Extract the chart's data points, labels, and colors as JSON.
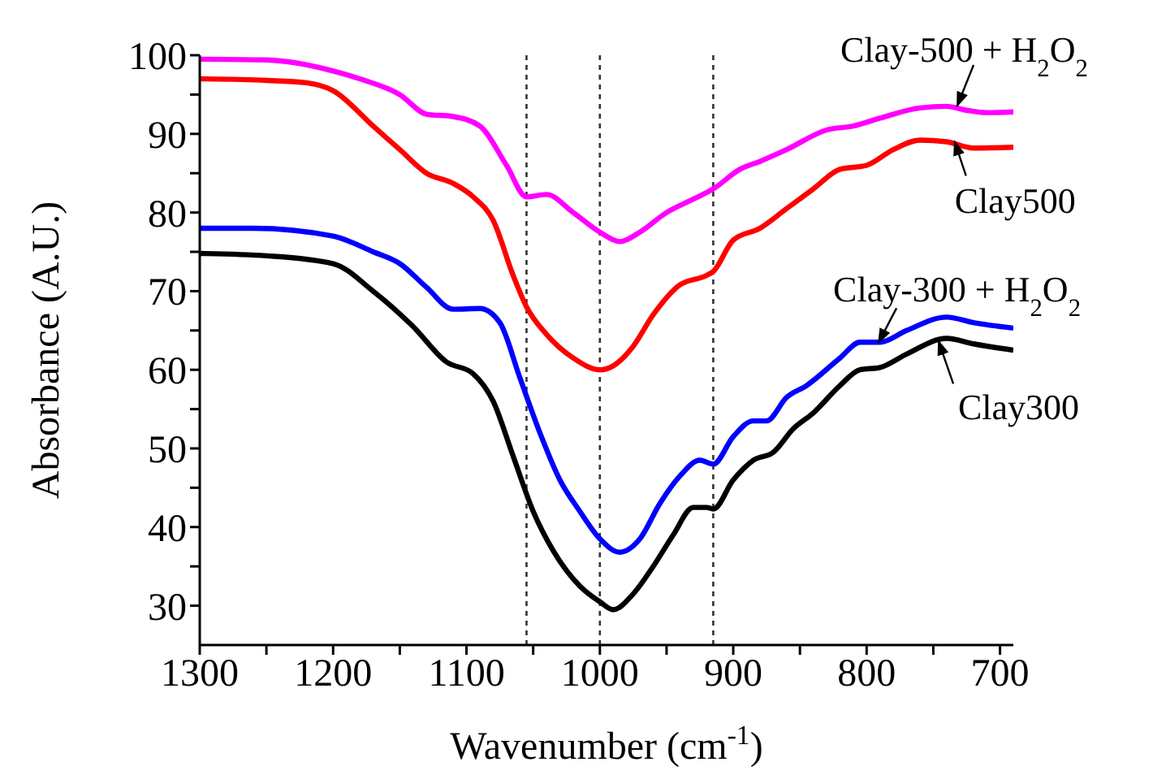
{
  "chart_data": {
    "type": "line",
    "xlabel": "Wavenumber (cm$^{-1}$)",
    "ylabel": "Absorbance (A.U.)",
    "xlim": [
      1300,
      690
    ],
    "ylim": [
      25,
      100
    ],
    "xticks": [
      1300,
      {
        "value": 1250,
        "label": null
      },
      1200,
      {
        "value": 1150,
        "label": null
      },
      1100,
      {
        "value": 1050,
        "label": null
      },
      1000,
      {
        "value": 950,
        "label": null
      },
      900,
      {
        "value": 850,
        "label": null
      },
      800,
      {
        "value": 750,
        "label": null
      },
      700
    ],
    "yticks": [
      30,
      {
        "value": 35,
        "label": null
      },
      40,
      {
        "value": 45,
        "label": null
      },
      50,
      {
        "value": 55,
        "label": null
      },
      60,
      {
        "value": 65,
        "label": null
      },
      70,
      {
        "value": 75,
        "label": null
      },
      80,
      {
        "value": 85,
        "label": null
      },
      90,
      {
        "value": 95,
        "label": null
      },
      100
    ],
    "marker": "none",
    "line_style": "solid",
    "series": [
      {
        "color": "#ff00ff",
        "x": [
          1300,
          1250,
          1200,
          1180,
          1150,
          1130,
          1110,
          1090,
          1070,
          1055,
          1040,
          1020,
          1000,
          985,
          970,
          950,
          930,
          915,
          895,
          880,
          860,
          830,
          810,
          790,
          760,
          740,
          725,
          710,
          690
        ],
        "values": [
          99.5,
          99.4,
          98,
          97,
          95,
          92.5,
          92.2,
          91,
          86,
          82,
          82.3,
          80,
          77.5,
          76.3,
          77.5,
          80,
          81.7,
          83,
          85.5,
          86.5,
          88,
          90.5,
          91,
          92,
          93.3,
          93.5,
          93,
          92.7,
          92.8
        ]
      },
      {
        "color": "#ff0000",
        "x": [
          1300,
          1250,
          1220,
          1200,
          1170,
          1150,
          1130,
          1110,
          1095,
          1080,
          1065,
          1055,
          1040,
          1020,
          1000,
          990,
          975,
          960,
          940,
          920,
          915,
          900,
          880,
          860,
          840,
          820,
          800,
          780,
          760,
          740,
          720,
          690
        ],
        "values": [
          97,
          96.8,
          96.5,
          95.5,
          91,
          88,
          85,
          83.7,
          82,
          79,
          72,
          68,
          64.5,
          61.5,
          60,
          60.5,
          63,
          67,
          70.8,
          72,
          72.5,
          76.5,
          78,
          80.5,
          83,
          85.5,
          86,
          88,
          89.2,
          89,
          88.2,
          88.3
        ]
      },
      {
        "color": "#0000ff",
        "x": [
          1300,
          1260,
          1200,
          1170,
          1150,
          1130,
          1110,
          1090,
          1075,
          1060,
          1045,
          1030,
          1015,
          1000,
          985,
          970,
          955,
          940,
          925,
          915,
          900,
          885,
          875,
          860,
          845,
          820,
          805,
          790,
          770,
          740,
          720,
          690
        ],
        "values": [
          78,
          78,
          77,
          75,
          73.5,
          70.5,
          67.7,
          67.8,
          66,
          59,
          52,
          46,
          42,
          38.5,
          36.8,
          38.5,
          43,
          46.5,
          48.5,
          48,
          51.5,
          53.5,
          53.5,
          56.5,
          58,
          61.5,
          63.5,
          63.5,
          65,
          66.7,
          66,
          65.3
        ]
      },
      {
        "color": "#000000",
        "x": [
          1300,
          1250,
          1200,
          1170,
          1140,
          1115,
          1095,
          1080,
          1065,
          1050,
          1035,
          1015,
          1000,
          990,
          975,
          960,
          945,
          930,
          920,
          915,
          900,
          885,
          870,
          855,
          840,
          820,
          805,
          790,
          770,
          740,
          720,
          690
        ],
        "values": [
          74.8,
          74.5,
          73.5,
          70,
          65.5,
          61,
          59.5,
          56,
          49,
          42,
          37,
          32.5,
          30.5,
          29.5,
          31.5,
          35,
          39,
          42.5,
          42.5,
          42.3,
          46,
          48.5,
          49.5,
          52.5,
          54.5,
          58,
          60,
          60.3,
          62,
          64,
          63.3,
          62.5
        ]
      }
    ],
    "ref_lines": [
      {
        "axis": "x",
        "value": 1055,
        "color": "#333333",
        "line_style": "dotted"
      },
      {
        "axis": "x",
        "value": 1000,
        "color": "#333333",
        "line_style": "dotted"
      },
      {
        "axis": "x",
        "value": 915,
        "color": "#333333",
        "line_style": "dotted"
      }
    ],
    "annotations": [
      {
        "text": "Clay-500 + H$_{2}$O$_{2}$",
        "x": 732,
        "y": 93.6
      },
      {
        "text": "Clay500",
        "x": 734,
        "y": 89
      },
      {
        "text": "Clay-300 + H$_{2}$O$_{2}$",
        "x": 791,
        "y": 63.5
      },
      {
        "text": "Clay300",
        "x": 746,
        "y": 63.6
      }
    ]
  }
}
